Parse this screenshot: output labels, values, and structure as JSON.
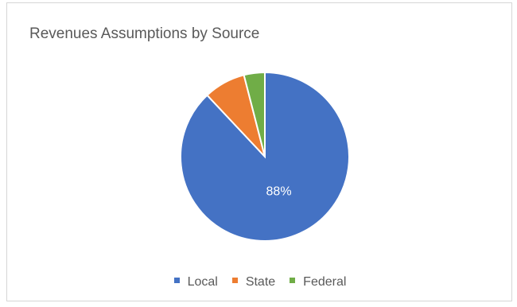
{
  "chart_data": {
    "type": "pie",
    "title": "Revenues Assumptions by Source",
    "categories": [
      "Local",
      "State",
      "Federal"
    ],
    "values": [
      88,
      8,
      4
    ],
    "unit": "%",
    "colors": [
      "#4472C4",
      "#ED7D31",
      "#70AD47"
    ],
    "data_labels": [
      "88%",
      "",
      ""
    ],
    "start_angle_deg": 0,
    "direction": "clockwise",
    "legend_position": "bottom"
  }
}
